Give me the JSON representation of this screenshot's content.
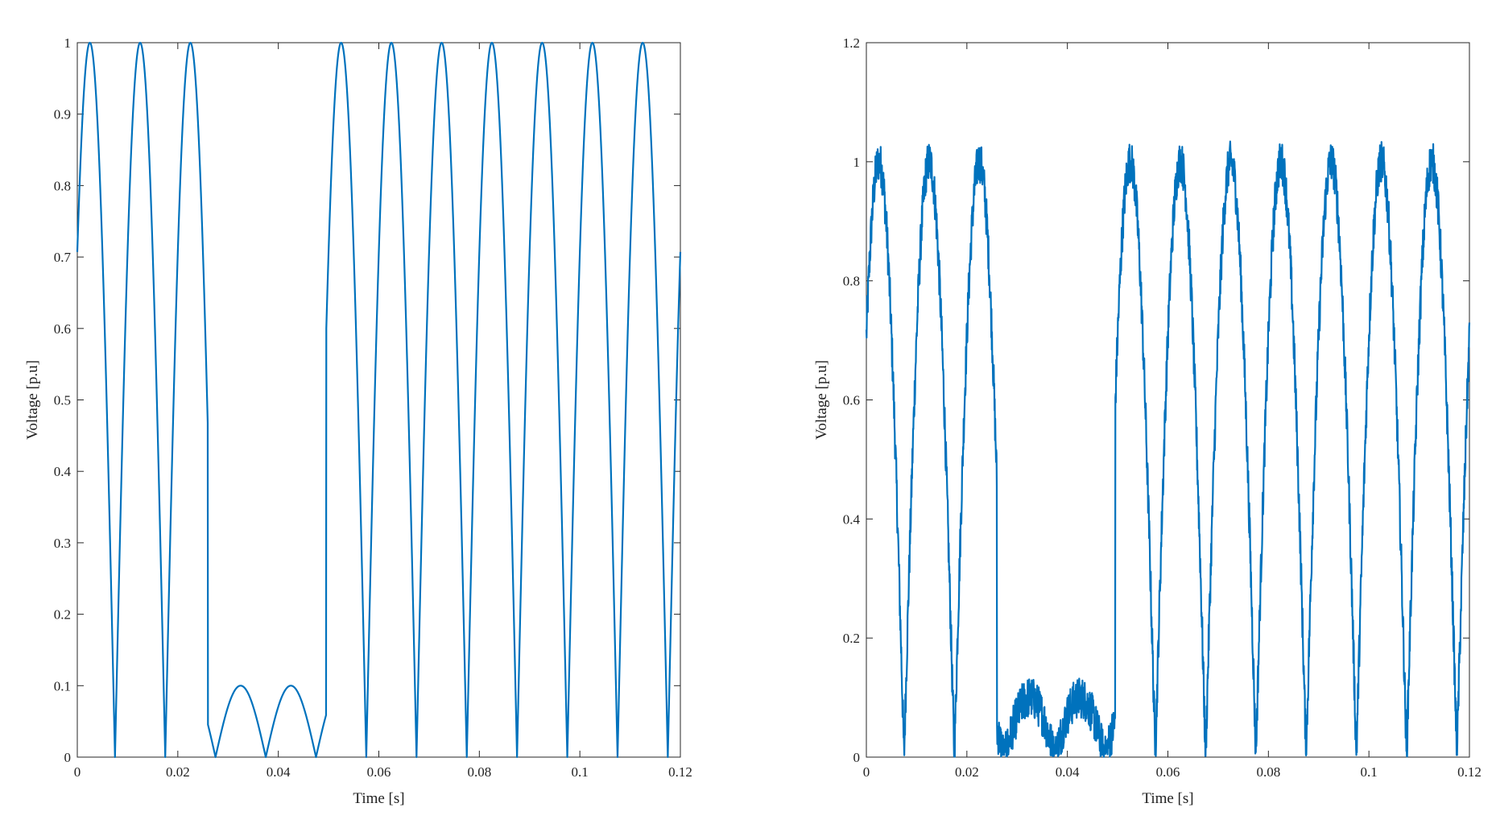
{
  "colors": {
    "trace": "#0072BD",
    "axes": "#262626"
  },
  "chart_data": [
    {
      "type": "line",
      "title": "",
      "xlabel": "Time [s]",
      "ylabel": "Voltage [p.u]",
      "xlim": [
        0,
        0.12
      ],
      "ylim": [
        0,
        1
      ],
      "xticks": [
        0,
        0.02,
        0.04,
        0.06,
        0.08,
        0.1,
        0.12
      ],
      "xtick_labels": [
        "0",
        "0.02",
        "0.04",
        "0.06",
        "0.08",
        "0.1",
        "0.12"
      ],
      "yticks": [
        0,
        0.1,
        0.2,
        0.3,
        0.4,
        0.5,
        0.6,
        0.7,
        0.8,
        0.9,
        1
      ],
      "ytick_labels": [
        "0",
        "0.1",
        "0.2",
        "0.3",
        "0.4",
        "0.5",
        "0.6",
        "0.7",
        "0.8",
        "0.9",
        "1"
      ],
      "grid": false,
      "series": [
        {
          "signal": "rectified sine (|sin|) with voltage sag",
          "frequency_hz": 50,
          "phase_deg": 45,
          "amplitude": 1.0,
          "sag_start_s": 0.026,
          "sag_end_s": 0.0495,
          "sag_amplitude": 0.1,
          "noise_amplitude": 0
        }
      ]
    },
    {
      "type": "line",
      "title": "",
      "xlabel": "Time [s]",
      "ylabel": "Voltage [p.u]",
      "xlim": [
        0,
        0.12
      ],
      "ylim": [
        0,
        1.2
      ],
      "xticks": [
        0,
        0.02,
        0.04,
        0.06,
        0.08,
        0.1,
        0.12
      ],
      "xtick_labels": [
        "0",
        "0.02",
        "0.04",
        "0.06",
        "0.08",
        "0.1",
        "0.12"
      ],
      "yticks": [
        0,
        0.2,
        0.4,
        0.6,
        0.8,
        1,
        1.2
      ],
      "ytick_labels": [
        "0",
        "0.2",
        "0.4",
        "0.6",
        "0.8",
        "1",
        "1.2"
      ],
      "grid": false,
      "series": [
        {
          "signal": "noisy rectified sine (|sin|) with voltage sag",
          "frequency_hz": 50,
          "phase_deg": 45,
          "amplitude": 1.0,
          "sag_start_s": 0.026,
          "sag_end_s": 0.0495,
          "sag_amplitude": 0.1,
          "noise_amplitude": 0.035
        }
      ]
    }
  ]
}
